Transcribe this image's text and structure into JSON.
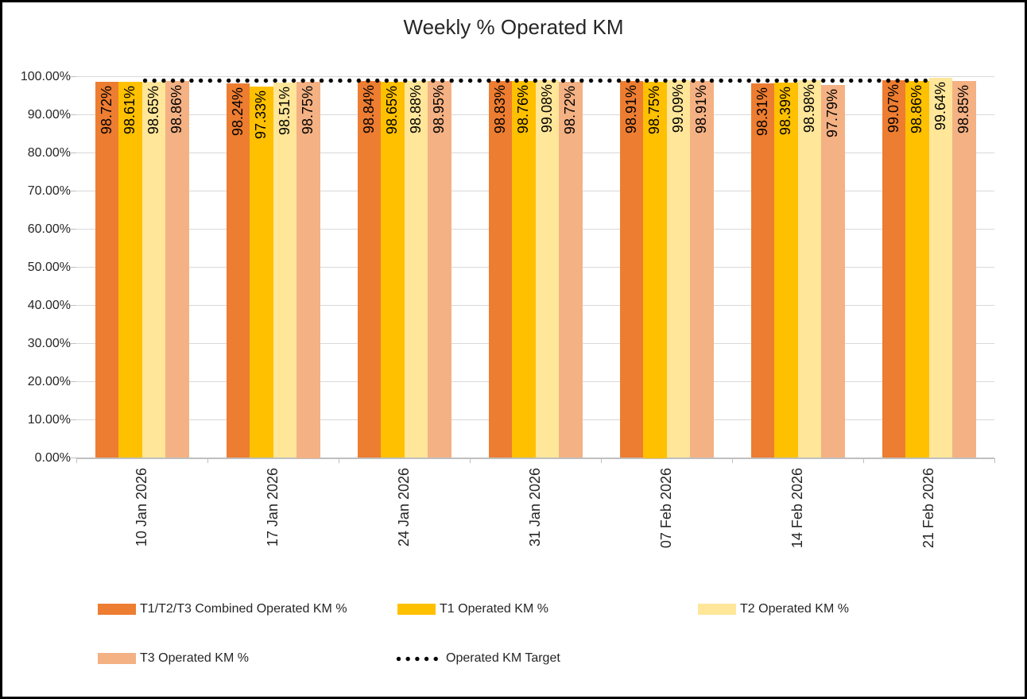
{
  "chart_data": {
    "type": "bar",
    "title": "Weekly % Operated KM",
    "categories": [
      "10 Jan 2026",
      "17 Jan 2026",
      "24 Jan 2026",
      "31 Jan 2026",
      "07 Feb 2026",
      "14 Feb 2026",
      "21 Feb 2026"
    ],
    "series": [
      {
        "name": "T1/T2/T3 Combined Operated KM %",
        "color": "#ED7D31",
        "values": [
          98.72,
          98.24,
          98.84,
          98.83,
          98.91,
          98.31,
          99.07
        ]
      },
      {
        "name": "T1 Operated KM %",
        "color": "#FFC000",
        "values": [
          98.61,
          97.33,
          98.65,
          98.76,
          98.75,
          98.39,
          98.86
        ]
      },
      {
        "name": "T2 Operated KM %",
        "color": "#FFE699",
        "values": [
          98.65,
          98.51,
          98.88,
          99.08,
          99.09,
          98.98,
          99.64
        ]
      },
      {
        "name": "T3 Operated KM %",
        "color": "#F4B183",
        "values": [
          98.86,
          98.75,
          98.95,
          98.72,
          98.91,
          97.79,
          98.85
        ]
      }
    ],
    "target_line": {
      "name": "Operated KM Target",
      "value": 99.0,
      "style": "dotted",
      "color": "#000000"
    },
    "y_ticks": [
      "100.00%",
      "90.00%",
      "80.00%",
      "70.00%",
      "60.00%",
      "50.00%",
      "40.00%",
      "30.00%",
      "20.00%",
      "10.00%",
      "0.00%"
    ],
    "ylim": [
      0,
      100
    ],
    "grid": true,
    "legend_position": "bottom",
    "data_label_format": "0.00%"
  },
  "colors": {
    "gridline": "#D9D9D9",
    "axis": "#BFBFBF",
    "text": "#262626",
    "data_label": "#000000"
  }
}
